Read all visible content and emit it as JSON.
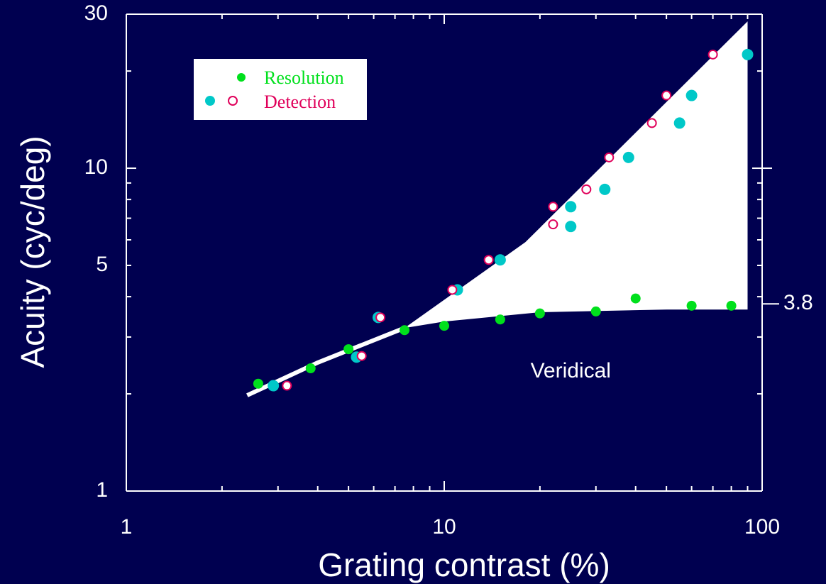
{
  "chart_data": {
    "type": "scatter",
    "x_scale": "log",
    "y_scale": "log",
    "xlim": [
      1,
      100
    ],
    "ylim": [
      1,
      30
    ],
    "xlabel": "Grating  contrast  (%)",
    "ylabel": "Acuity (cyc/deg)",
    "x_tick_labels": [
      {
        "value": 1,
        "label": "1"
      },
      {
        "value": 10,
        "label": "10"
      },
      {
        "value": 100,
        "label": "100"
      }
    ],
    "y_tick_labels": [
      {
        "value": 1,
        "label": "1"
      },
      {
        "value": 5,
        "label": "5"
      },
      {
        "value": 10,
        "label": "10"
      },
      {
        "value": 30,
        "label": "30"
      }
    ],
    "right_tick_label": {
      "value": 3.8,
      "label": "3.8"
    },
    "grid": false,
    "legend_position": "top-left",
    "annotation": "Veridical",
    "series": [
      {
        "name": "Resolution",
        "marker": "filled",
        "color": "#00e01c",
        "x": [
          2.6,
          3.8,
          5.0,
          7.5,
          10.0,
          15.0,
          20.0,
          30.0,
          40.0,
          60.0,
          80.0
        ],
        "y": [
          2.15,
          2.4,
          2.75,
          3.15,
          3.25,
          3.4,
          3.55,
          3.6,
          3.95,
          3.75,
          3.75
        ]
      },
      {
        "name": "Resolution",
        "marker": "filled",
        "color": "#00c8c8",
        "x": [
          2.9,
          5.3,
          6.2,
          11.0,
          15.0,
          25.0,
          25.0,
          32.0,
          38.0,
          55.0,
          60.0,
          90.0
        ],
        "y": [
          2.12,
          2.6,
          3.45,
          4.2,
          5.2,
          6.6,
          7.6,
          8.6,
          10.8,
          13.8,
          16.8,
          22.5
        ]
      },
      {
        "name": "Detection",
        "marker": "open",
        "color": "#e0005a",
        "x": [
          3.2,
          5.5,
          6.3,
          10.6,
          13.8,
          22.0,
          22.0,
          28.0,
          33.0,
          45.0,
          50.0,
          70.0
        ],
        "y": [
          2.12,
          2.62,
          3.45,
          4.2,
          5.2,
          6.7,
          7.6,
          8.6,
          10.8,
          13.8,
          16.8,
          22.5
        ]
      }
    ],
    "upper_boundary": {
      "x": [
        2.4,
        4.0,
        7.5,
        18.0,
        90.0
      ],
      "y": [
        1.98,
        2.5,
        3.2,
        5.9,
        28.5
      ]
    },
    "lower_boundary": {
      "x": [
        2.4,
        4.0,
        7.5,
        10.0,
        20.0,
        50.0,
        90.0
      ],
      "y": [
        1.98,
        2.5,
        3.2,
        3.35,
        3.58,
        3.65,
        3.65
      ]
    },
    "legend": [
      {
        "label": "Resolution",
        "color": "#00e01c"
      },
      {
        "label": "Detection",
        "color": "#e0005a"
      }
    ]
  }
}
